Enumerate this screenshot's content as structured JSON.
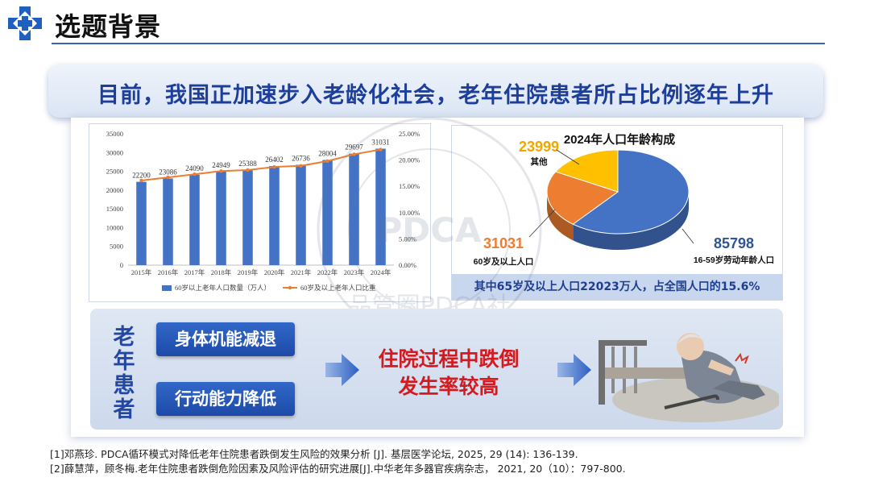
{
  "header": {
    "title": "选题背景"
  },
  "banner": {
    "text": "目前，我国正加速步入老龄化社会，老年住院患者所占比例逐年上升"
  },
  "chart_data": [
    {
      "type": "bar",
      "categories": [
        "2015年",
        "2016年",
        "2017年",
        "2018年",
        "2019年",
        "2020年",
        "2021年",
        "2022年",
        "2023年",
        "2024年"
      ],
      "series": [
        {
          "name": "60岁以上老年人口数量（万人）",
          "type": "bar",
          "values": [
            22200,
            23086,
            24090,
            24949,
            25388,
            26402,
            26736,
            28004,
            29697,
            31031
          ]
        },
        {
          "name": "60岁及以上老年人口比重",
          "type": "line",
          "values": [
            16.1,
            16.7,
            17.3,
            17.9,
            18.1,
            18.7,
            18.9,
            19.8,
            21.1,
            22.0
          ]
        }
      ],
      "ylim": [
        0,
        35000
      ],
      "yticks": [
        "0",
        "5000",
        "10000",
        "15000",
        "20000",
        "25000",
        "30000",
        "35000"
      ],
      "y2lim": [
        0,
        25
      ],
      "y2ticks": [
        "0.00%",
        "5.00%",
        "10.00%",
        "15.00%",
        "20.00%",
        "25.00%"
      ],
      "legend_position": "bottom",
      "bar_color": "#4472c4",
      "line_color": "#ed7d31"
    },
    {
      "type": "pie",
      "title": "2024年人口年龄构成",
      "slices": [
        {
          "value": 85798,
          "label": "16-59岁劳动年龄人口",
          "color": "#4472c4",
          "label_color": "#2f5597"
        },
        {
          "value": 31031,
          "label": "60岁及以上人口",
          "color": "#ed7d31",
          "label_color": "#ed7d31"
        },
        {
          "value": 23999,
          "label": "其他",
          "color": "#ffc000",
          "label_color": "#f0a800"
        }
      ]
    }
  ],
  "pie_footer": "其中65岁及以上人口22023万人，占全国人口的15.6%",
  "patients": {
    "label": "老年患者",
    "factors": [
      "身体机能减退",
      "行动能力降低"
    ],
    "outcome_line1": "住院过程中跌倒",
    "outcome_line2": "发生率较高"
  },
  "watermark": {
    "text": "品管圈PDCA社"
  },
  "references": [
    "[1]邓燕珍. PDCA循环模式对降低老年住院患者跌倒发生风险的效果分析 [J]. 基层医学论坛, 2025, 29 (14): 136-139.",
    "[2]薛慧萍，顾冬梅.老年住院患者跌倒危险因素及风险评估的研究进展[J].中华老年多器官疾病杂志， 2021, 20（10）：797-800."
  ]
}
